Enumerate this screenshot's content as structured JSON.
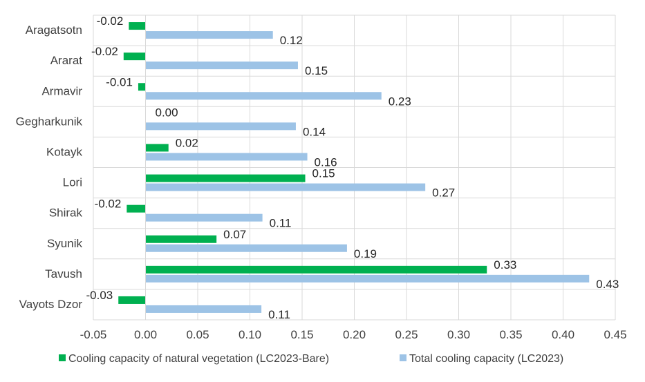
{
  "chart_data": {
    "type": "bar",
    "orientation": "horizontal",
    "categories": [
      "Aragatsotn",
      "Ararat",
      "Armavir",
      "Gegharkunik",
      "Kotayk",
      "Lori",
      "Shirak",
      "Syunik",
      "Tavush",
      "Vayots Dzor"
    ],
    "series": [
      {
        "name": "Cooling capacity of natural vegetation (LC2023-Bare)",
        "color": "#00b050",
        "values": [
          -0.016,
          -0.021,
          -0.007,
          0.0,
          0.022,
          0.153,
          -0.018,
          0.068,
          0.327,
          -0.026
        ],
        "labels": [
          "-0.02",
          "-0.02",
          "-0.01",
          "0.00",
          "0.02",
          "0.15",
          "-0.02",
          "0.07",
          "0.33",
          "-0.03"
        ]
      },
      {
        "name": "Total cooling capacity (LC2023)",
        "color": "#9dc3e6",
        "values": [
          0.122,
          0.146,
          0.226,
          0.144,
          0.155,
          0.268,
          0.112,
          0.193,
          0.425,
          0.111
        ],
        "labels": [
          "0.12",
          "0.15",
          "0.23",
          "0.14",
          "0.16",
          "0.27",
          "0.11",
          "0.19",
          "0.43",
          "0.11"
        ]
      }
    ],
    "xlim": [
      -0.05,
      0.45
    ],
    "xticks": [
      "-0.05",
      "0.00",
      "0.05",
      "0.10",
      "0.15",
      "0.20",
      "0.25",
      "0.30",
      "0.35",
      "0.40",
      "0.45"
    ],
    "grid": true,
    "legend_position": "bottom"
  }
}
